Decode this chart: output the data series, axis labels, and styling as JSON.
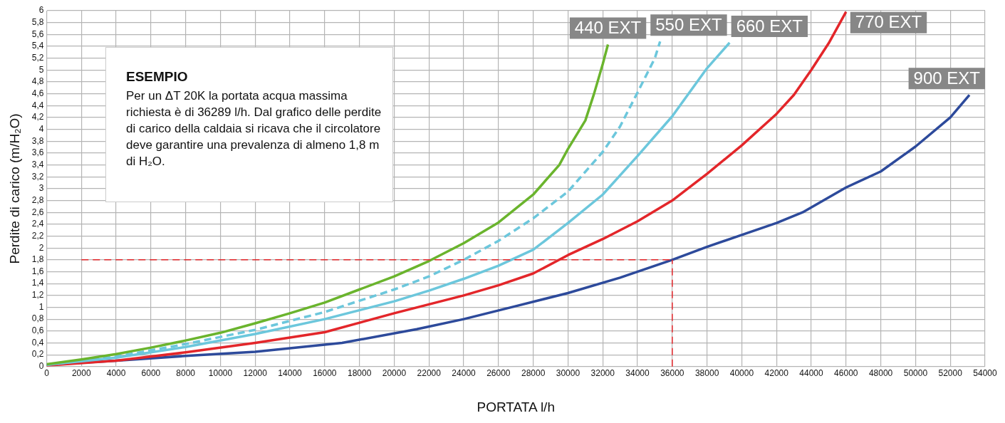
{
  "chart_data": {
    "type": "line",
    "xlabel": "PORTATA l/h",
    "ylabel": "Perdite di carico (m/H₂O)",
    "xlim": [
      0,
      54000
    ],
    "xticks": [
      0,
      2000,
      4000,
      6000,
      8000,
      10000,
      12000,
      14000,
      16000,
      18000,
      20000,
      22000,
      24000,
      26000,
      28000,
      30000,
      32000,
      34000,
      36000,
      38000,
      40000,
      42000,
      44000,
      46000,
      48000,
      50000,
      52000,
      54000
    ],
    "ylim": [
      0,
      6
    ],
    "yticks": [
      0,
      {
        "value": 0.2,
        "label": "0,2"
      },
      {
        "value": 0.4,
        "label": "0,4"
      },
      {
        "value": 0.6,
        "label": "0,6"
      },
      {
        "value": 0.8,
        "label": "0,8"
      },
      1,
      {
        "value": 1.2,
        "label": "1,2"
      },
      {
        "value": 1.4,
        "label": "1,4"
      },
      {
        "value": 1.6,
        "label": "1,6"
      },
      {
        "value": 1.8,
        "label": "1,8"
      },
      2,
      {
        "value": 2.2,
        "label": "2,2"
      },
      {
        "value": 2.4,
        "label": "2,4"
      },
      {
        "value": 2.6,
        "label": "2,6"
      },
      {
        "value": 2.8,
        "label": "2,8"
      },
      3,
      {
        "value": 3.2,
        "label": "3,2"
      },
      {
        "value": 3.4,
        "label": "3,4"
      },
      {
        "value": 3.6,
        "label": "3,6"
      },
      {
        "value": 3.8,
        "label": "3,8"
      },
      4,
      {
        "value": 4.2,
        "label": "4,2"
      },
      {
        "value": 4.4,
        "label": "4,4"
      },
      {
        "value": 4.6,
        "label": "4,6"
      },
      {
        "value": 4.8,
        "label": "4,8"
      },
      5,
      {
        "value": 5.2,
        "label": "5,2"
      },
      {
        "value": 5.4,
        "label": "5,4"
      },
      {
        "value": 5.6,
        "label": "5,6"
      },
      {
        "value": 5.8,
        "label": "5,8"
      },
      6
    ],
    "grid": true,
    "legend": false,
    "marker": "none",
    "series": [
      {
        "name": "440 EXT",
        "color": "#6ab42d",
        "line_style": "solid",
        "x": [
          0,
          2000,
          4000,
          6000,
          8000,
          10000,
          12000,
          14000,
          16000,
          18000,
          20000,
          22000,
          24000,
          26000,
          28000,
          29500,
          30000,
          31000,
          31500,
          32000,
          32300
        ],
        "values": [
          0.04,
          0.12,
          0.21,
          0.32,
          0.44,
          0.57,
          0.73,
          0.9,
          1.08,
          1.3,
          1.52,
          1.78,
          2.08,
          2.43,
          2.9,
          3.4,
          3.67,
          4.15,
          4.6,
          5.1,
          5.43
        ]
      },
      {
        "name": "550 EXT",
        "color": "#6cc7dc",
        "line_style": "dashed",
        "x": [
          0,
          4000,
          8000,
          12000,
          16000,
          20000,
          22000,
          24000,
          26000,
          28000,
          30000,
          32000,
          33000,
          34000,
          35000,
          35300
        ],
        "values": [
          0.03,
          0.17,
          0.38,
          0.62,
          0.92,
          1.3,
          1.52,
          1.8,
          2.12,
          2.5,
          2.95,
          3.62,
          4.05,
          4.62,
          5.2,
          5.48
        ]
      },
      {
        "name": "660 EXT",
        "color": "#6cc7dc",
        "line_style": "solid",
        "x": [
          0,
          4000,
          8000,
          12000,
          16000,
          20000,
          22000,
          24000,
          26000,
          28000,
          30000,
          32000,
          34000,
          36000,
          38000,
          39300
        ],
        "values": [
          0.03,
          0.15,
          0.33,
          0.55,
          0.8,
          1.1,
          1.28,
          1.48,
          1.7,
          1.97,
          2.42,
          2.9,
          3.55,
          4.22,
          5.03,
          5.46
        ]
      },
      {
        "name": "770 EXT",
        "color": "#e3262a",
        "line_style": "solid",
        "x": [
          0,
          4000,
          8000,
          12000,
          16000,
          20000,
          22000,
          24000,
          26000,
          28000,
          30000,
          32000,
          34000,
          36000,
          38000,
          40000,
          42000,
          43000,
          44000,
          45000,
          46000
        ],
        "values": [
          0.02,
          0.1,
          0.24,
          0.4,
          0.58,
          0.9,
          1.05,
          1.2,
          1.37,
          1.57,
          1.88,
          2.15,
          2.45,
          2.8,
          3.25,
          3.73,
          4.26,
          4.58,
          5.0,
          5.45,
          5.98
        ]
      },
      {
        "name": "900 EXT",
        "color": "#2d4a9b",
        "line_style": "solid",
        "x": [
          0,
          4000,
          8000,
          12000,
          17000,
          21300,
          24000,
          27000,
          30000,
          33000,
          36000,
          38000,
          40000,
          42000,
          43500,
          46000,
          48000,
          50000,
          52000,
          53100
        ],
        "values": [
          0.03,
          0.1,
          0.18,
          0.25,
          0.4,
          0.63,
          0.8,
          1.02,
          1.24,
          1.5,
          1.8,
          2.02,
          2.22,
          2.42,
          2.6,
          3.02,
          3.29,
          3.71,
          4.2,
          4.58
        ]
      }
    ],
    "ref_lines": [
      {
        "axis": "y",
        "value": 1.8,
        "color": "#e3262a",
        "line_style": "dashed"
      },
      {
        "axis": "x",
        "value": 36000,
        "color": "#e3262a",
        "line_style": "dashed"
      }
    ],
    "annotations": [
      "ESEMPIO",
      "Per un ΔT 20K la portata acqua massima richiesta è di 36289 l/h. Dal grafico delle perdite di carico della caldaia si ricava che il circolatore deve garantire una prevalenza di almeno 1,8 m di H₂O."
    ]
  }
}
